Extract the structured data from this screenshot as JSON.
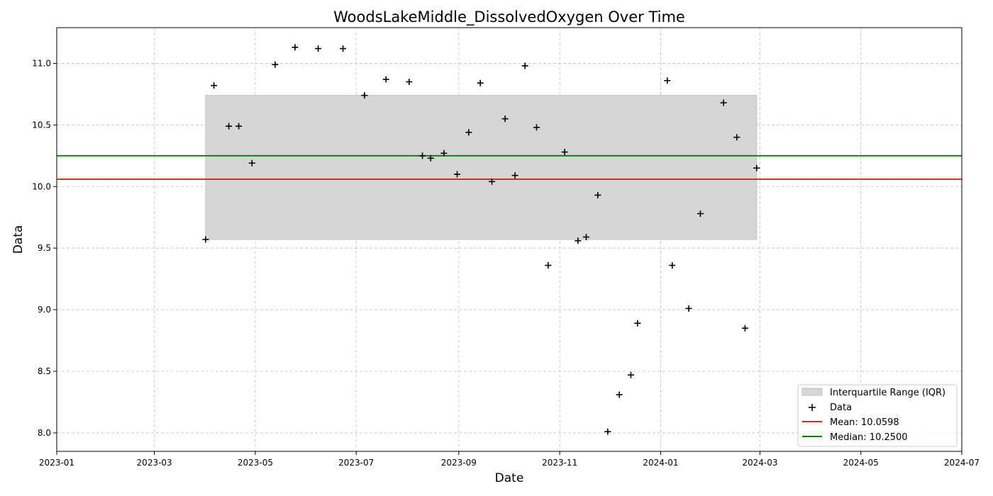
{
  "chart_data": {
    "type": "scatter",
    "title": "WoodsLakeMiddle_DissolvedOxygen Over Time",
    "xlabel": "Date",
    "ylabel": "Data",
    "x_range": [
      "2023-01-01",
      "2024-07-01"
    ],
    "y_range": [
      7.85,
      11.29
    ],
    "x_ticks": [
      "2023-01",
      "2023-03",
      "2023-05",
      "2023-07",
      "2023-09",
      "2023-11",
      "2024-01",
      "2024-03",
      "2024-05",
      "2024-07"
    ],
    "y_ticks": [
      8.0,
      8.5,
      9.0,
      9.5,
      10.0,
      10.5,
      11.0
    ],
    "grid": true,
    "legend_position": "lower-right",
    "iqr": {
      "label": "Interquartile Range (IQR)",
      "x_start": "2023-04-01",
      "x_end": "2024-02-28",
      "y_low": 9.57,
      "y_high": 10.74,
      "color": "#d6d6d6"
    },
    "mean": {
      "label": "Mean: 10.0598",
      "value": 10.0598,
      "color": "#ff0000"
    },
    "median": {
      "label": "Median: 10.2500",
      "value": 10.25,
      "color": "#008000"
    },
    "series": [
      {
        "name": "Data",
        "marker": "+",
        "color": "#000000",
        "points": [
          [
            "2023-04-01",
            9.57
          ],
          [
            "2023-04-06",
            10.82
          ],
          [
            "2023-04-15",
            10.49
          ],
          [
            "2023-04-21",
            10.49
          ],
          [
            "2023-04-29",
            10.19
          ],
          [
            "2023-05-13",
            10.99
          ],
          [
            "2023-05-25",
            11.13
          ],
          [
            "2023-06-08",
            11.12
          ],
          [
            "2023-06-23",
            11.12
          ],
          [
            "2023-07-06",
            10.74
          ],
          [
            "2023-07-19",
            10.87
          ],
          [
            "2023-08-02",
            10.85
          ],
          [
            "2023-08-10",
            10.25
          ],
          [
            "2023-08-15",
            10.23
          ],
          [
            "2023-08-23",
            10.27
          ],
          [
            "2023-08-31",
            10.1
          ],
          [
            "2023-09-07",
            10.44
          ],
          [
            "2023-09-14",
            10.84
          ],
          [
            "2023-09-21",
            10.04
          ],
          [
            "2023-09-29",
            10.55
          ],
          [
            "2023-10-05",
            10.09
          ],
          [
            "2023-10-11",
            10.98
          ],
          [
            "2023-10-18",
            10.48
          ],
          [
            "2023-10-25",
            9.36
          ],
          [
            "2023-11-04",
            10.28
          ],
          [
            "2023-11-12",
            9.56
          ],
          [
            "2023-11-17",
            9.59
          ],
          [
            "2023-11-24",
            9.93
          ],
          [
            "2023-11-30",
            8.01
          ],
          [
            "2023-12-07",
            8.31
          ],
          [
            "2023-12-14",
            8.47
          ],
          [
            "2023-12-18",
            8.89
          ],
          [
            "2024-01-05",
            10.86
          ],
          [
            "2024-01-08",
            9.36
          ],
          [
            "2024-01-18",
            9.01
          ],
          [
            "2024-01-25",
            9.78
          ],
          [
            "2024-02-08",
            10.68
          ],
          [
            "2024-02-16",
            10.4
          ],
          [
            "2024-02-21",
            8.85
          ],
          [
            "2024-02-28",
            10.15
          ]
        ]
      }
    ]
  }
}
